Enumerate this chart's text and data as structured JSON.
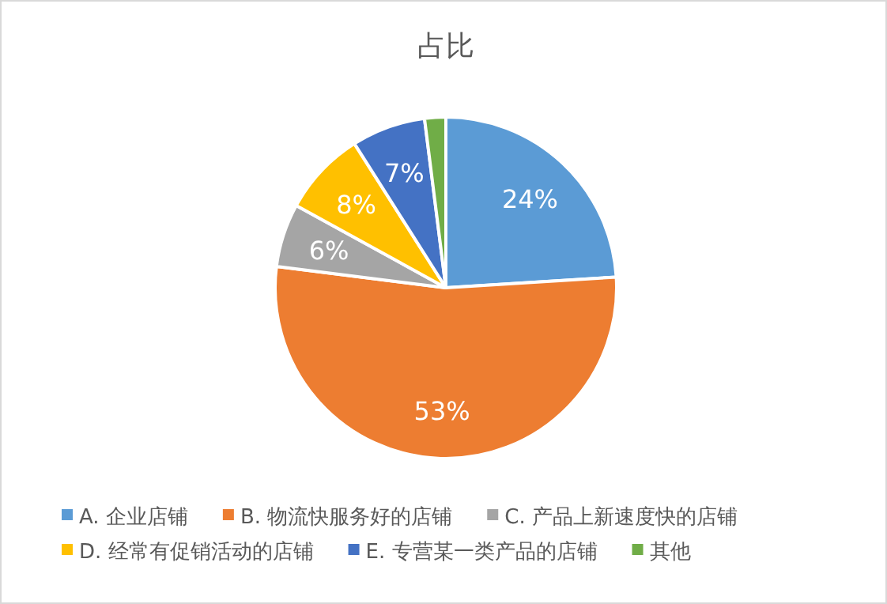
{
  "chart_data": {
    "type": "pie",
    "title": "占比",
    "categories": [
      "A. 企业店铺",
      "B. 物流快服务好的店铺",
      "C. 产品上新速度快的店铺",
      "D. 经常有促销活动的店铺",
      "E. 专营某一类产品的店铺",
      "其他"
    ],
    "values": [
      24,
      53,
      6,
      8,
      7,
      2
    ],
    "colors": [
      "#5b9bd5",
      "#ed7d31",
      "#a5a5a5",
      "#ffc000",
      "#4472c4",
      "#70ad47"
    ],
    "value_labels": [
      "24%",
      "53%",
      "6%",
      "8%",
      "7%",
      null
    ],
    "legend": "bottom"
  }
}
